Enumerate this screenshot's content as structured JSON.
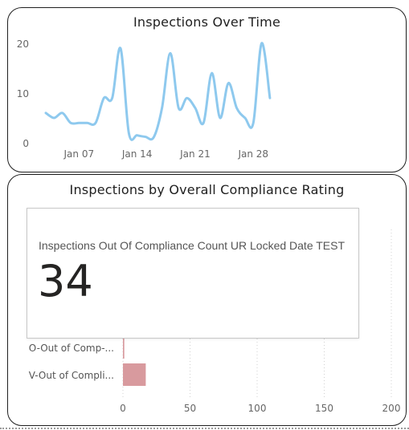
{
  "line_chart": {
    "title": "Inspections Over Time",
    "line_color": "#8ec9ee"
  },
  "bar_chart": {
    "title": "Inspections by Overall Compliance Rating",
    "bar_color": "#d89a9e",
    "categories": [
      "O-Out of Comp-...",
      "V-Out of Compli..."
    ]
  },
  "kpi_card": {
    "label": "Inspections Out Of Compliance Count UR Locked Date TEST",
    "value": "34"
  },
  "chart_data": [
    {
      "type": "line",
      "title": "Inspections Over Time",
      "xlabel": "",
      "ylabel": "",
      "x_tick_labels": [
        "Jan 07",
        "Jan 14",
        "Jan 21",
        "Jan 28"
      ],
      "y_tick_labels": [
        "0",
        "10",
        "20"
      ],
      "ylim": [
        0,
        20
      ],
      "x_start": "2024-01-03",
      "x": [
        "2024-01-03",
        "2024-01-04",
        "2024-01-05",
        "2024-01-06",
        "2024-01-07",
        "2024-01-08",
        "2024-01-09",
        "2024-01-10",
        "2024-01-11",
        "2024-01-12",
        "2024-01-13",
        "2024-01-14",
        "2024-01-15",
        "2024-01-16",
        "2024-01-17",
        "2024-01-18",
        "2024-01-19",
        "2024-01-20",
        "2024-01-21",
        "2024-01-22",
        "2024-01-23",
        "2024-01-24",
        "2024-01-25",
        "2024-01-26",
        "2024-01-27",
        "2024-01-28",
        "2024-01-29",
        "2024-01-30"
      ],
      "values": [
        6,
        5,
        6,
        4,
        4,
        4,
        4,
        9,
        9,
        19,
        2,
        1.5,
        1.2,
        1.1,
        7,
        18,
        7,
        9,
        7,
        4,
        14,
        5,
        12,
        7,
        5,
        4,
        20,
        9
      ],
      "grid": false,
      "legend": "none"
    },
    {
      "type": "bar",
      "orientation": "horizontal",
      "title": "Inspections by Overall Compliance Rating",
      "categories": [
        "O-Out of Comp-...",
        "V-Out of Compli..."
      ],
      "values": [
        1,
        17
      ],
      "x_tick_labels": [
        "0",
        "50",
        "100",
        "150",
        "200"
      ],
      "xlim": [
        0,
        200
      ],
      "grid": true,
      "legend": "none"
    }
  ]
}
